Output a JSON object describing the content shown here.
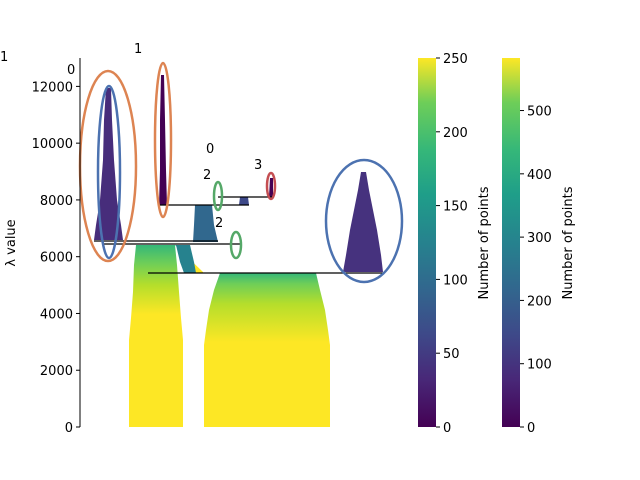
{
  "chart_data": {
    "type": "other",
    "subtype": "condensed cluster tree (HDBSCAN-style icicle plot)",
    "ylabel": "λ value",
    "ylim": [
      0,
      13000
    ],
    "y_ticks": [
      0,
      2000,
      4000,
      6000,
      8000,
      10000,
      12000
    ],
    "x_axis_visible": false,
    "colormap": "viridis",
    "colorbars": [
      {
        "label": "Number of points",
        "min": 0,
        "max": 250,
        "ticks": [
          0,
          50,
          100,
          150,
          200,
          250
        ]
      },
      {
        "label": "Number of points",
        "min": 0,
        "max": 583,
        "ticks": [
          0,
          100,
          200,
          300,
          400,
          500
        ]
      }
    ],
    "annotation_labels": [
      "1",
      "1",
      "0",
      "0",
      "2",
      "3",
      "2"
    ],
    "highlight_colors": {
      "orange": "#dd8452",
      "blue": "#4c72b0",
      "green": "#55a868",
      "red": "#c44e52"
    }
  }
}
